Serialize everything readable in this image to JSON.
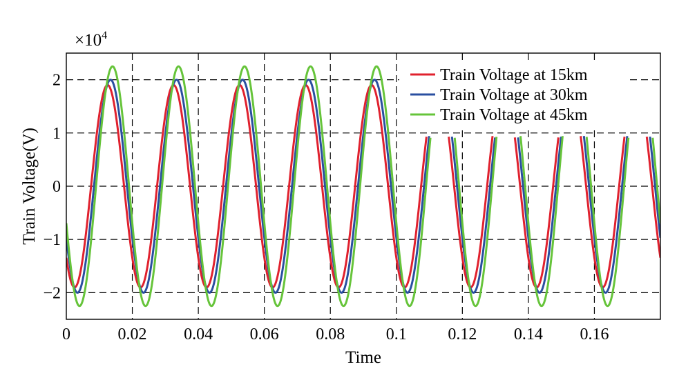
{
  "chart_data": {
    "type": "line",
    "title": "",
    "xlabel": "Time",
    "ylabel": "Train Voltage(V)",
    "y_multiplier": "×10",
    "y_multiplier_exponent": "4",
    "xlim": [
      0,
      0.18
    ],
    "ylim": [
      -2.5,
      2.5
    ],
    "y_scale_factor": 10000,
    "x_ticks": [
      0,
      0.02,
      0.04,
      0.06,
      0.08,
      0.1,
      0.12,
      0.14,
      0.16
    ],
    "x_tick_labels": [
      "0",
      "0.02",
      "0.04",
      "0.06",
      "0.08",
      "0.1",
      "0.12",
      "0.14",
      "0.16"
    ],
    "y_ticks": [
      -2,
      -1,
      0,
      1,
      2
    ],
    "y_tick_labels": [
      "−2",
      "−1",
      "0",
      "1",
      "2"
    ],
    "grid": true,
    "legend_position": "top-right",
    "waveform": {
      "frequency_hz": 50,
      "clip_start": 0.1,
      "clip_level": 0.95
    },
    "series": [
      {
        "name": "Train Voltage at 15km",
        "color": "#e0212e",
        "amplitude": 1.9,
        "phase_deg": 225
      },
      {
        "name": "Train Voltage at 30km",
        "color": "#2a4fa0",
        "amplitude": 2.0,
        "phase_deg": 209
      },
      {
        "name": "Train Voltage at 45km",
        "color": "#66c43a",
        "amplitude": 2.25,
        "phase_deg": 198
      }
    ]
  }
}
